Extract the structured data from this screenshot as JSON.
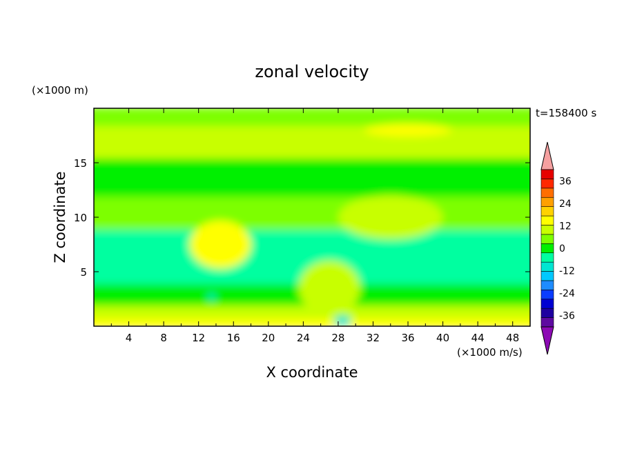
{
  "chart_data": {
    "type": "heatmap",
    "title": "zonal velocity",
    "xlabel": "X coordinate",
    "ylabel": "Z coordinate",
    "x_units": "(×1000 m/s)",
    "y_units": "(×1000 m)",
    "time_label": "t=158400 s",
    "xlim": [
      0,
      50
    ],
    "ylim": [
      0,
      20
    ],
    "x_ticks": [
      "4",
      "8",
      "12",
      "16",
      "20",
      "24",
      "28",
      "32",
      "36",
      "40",
      "44",
      "48"
    ],
    "y_ticks": [
      "5",
      "10",
      "15"
    ],
    "colorbar": {
      "tick_labels": [
        "36",
        "24",
        "12",
        "0",
        "-12",
        "-24",
        "-36"
      ],
      "levels": [
        -42,
        -36,
        -30,
        -24,
        -18,
        -12,
        -6,
        0,
        6,
        12,
        18,
        24,
        30,
        36,
        42
      ],
      "colors": [
        "#5e0aa0",
        "#1e00a0",
        "#0000d2",
        "#0a3cff",
        "#1e8cff",
        "#00c8ff",
        "#00e6d2",
        "#00ffa0",
        "#00f000",
        "#7dff00",
        "#c8ff00",
        "#ffff00",
        "#ffd200",
        "#ffa000",
        "#ff6e00",
        "#ff2800",
        "#e60000"
      ],
      "extend_low_color": "#8c0ab4",
      "extend_high_color": "#f5a0a0"
    },
    "field_bands": [
      {
        "z": [
          0.0,
          0.8
        ],
        "value": 14
      },
      {
        "z": [
          0.8,
          2.0
        ],
        "value": 8
      },
      {
        "z": [
          2.0,
          4.0
        ],
        "value": -6
      },
      {
        "z": [
          4.0,
          9.0
        ],
        "value": -10
      },
      {
        "z": [
          9.0,
          12.0
        ],
        "value": 2
      },
      {
        "z": [
          12.0,
          15.5
        ],
        "value": -6
      },
      {
        "z": [
          15.5,
          18.5
        ],
        "value": 6
      },
      {
        "z": [
          18.5,
          20.0
        ],
        "value": 2
      }
    ],
    "field_features": [
      {
        "name": "warm-blob-left",
        "x": 14.5,
        "z": 7.5,
        "rx": 3.5,
        "rz": 2.2,
        "value": 12
      },
      {
        "name": "warm-blob-center",
        "x": 27,
        "z": 3.5,
        "rx": 3.5,
        "rz": 2.5,
        "value": 8
      },
      {
        "name": "warm-patch-right",
        "x": 34,
        "z": 10,
        "rx": 6,
        "rz": 2,
        "value": 8
      },
      {
        "name": "cold-spot-1",
        "x": 13.5,
        "z": 2.7,
        "rx": 0.4,
        "rz": 0.3,
        "value": -18
      },
      {
        "name": "cold-spot-2",
        "x": 28.5,
        "z": 0.5,
        "rx": 1.0,
        "rz": 0.5,
        "value": -18
      },
      {
        "name": "upper-warm-streak",
        "x": 36,
        "z": 18,
        "rx": 5,
        "rz": 0.6,
        "value": 12
      }
    ]
  }
}
